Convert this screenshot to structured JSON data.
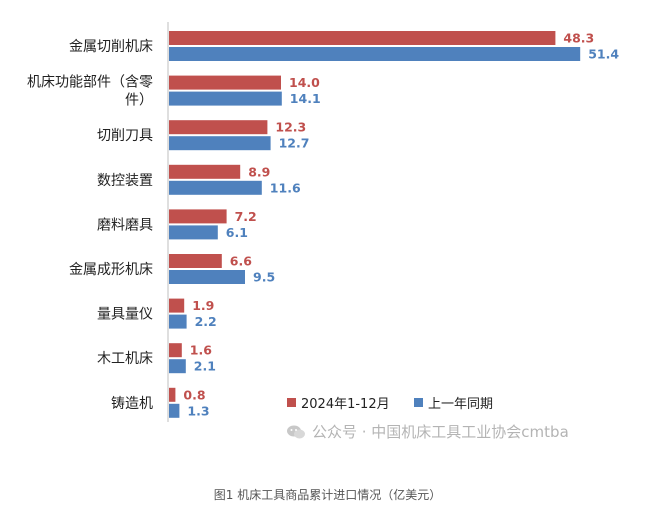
{
  "chart_data": {
    "type": "bar",
    "orientation": "horizontal",
    "categories": [
      "金属切削机床",
      "机床功能部件（含零件）",
      "切削刀具",
      "数控装置",
      "磨料磨具",
      "金属成形机床",
      "量具量仪",
      "木工机床",
      "铸造机"
    ],
    "category_lines": [
      [
        "金属切削机床"
      ],
      [
        "机床功能部件（含零",
        "件）"
      ],
      [
        "切削刀具"
      ],
      [
        "数控装置"
      ],
      [
        "磨料磨具"
      ],
      [
        "金属成形机床"
      ],
      [
        "量具量仪"
      ],
      [
        "木工机床"
      ],
      [
        "铸造机"
      ]
    ],
    "series": [
      {
        "name": "2024年1-12月",
        "color": "#c0504d",
        "values": [
          48.3,
          14.0,
          12.3,
          8.9,
          7.2,
          6.6,
          1.9,
          1.6,
          0.8
        ]
      },
      {
        "name": "上一年同期",
        "color": "#4f81bd",
        "values": [
          51.4,
          14.1,
          12.7,
          11.6,
          6.1,
          9.5,
          2.2,
          2.1,
          1.3
        ]
      }
    ],
    "value_labels": [
      [
        "48.3",
        "14.0",
        "12.3",
        "8.9",
        "7.2",
        "6.6",
        "1.9",
        "1.6",
        "0.8"
      ],
      [
        "51.4",
        "14.1",
        "12.7",
        "11.6",
        "6.1",
        "9.5",
        "2.2",
        "2.1",
        "1.3"
      ]
    ],
    "xlim": [
      0,
      55
    ],
    "grid": false,
    "legend_position": "bottom-right"
  },
  "watermark": "公众号 · 中国机床工具工业协会cmtba",
  "caption": "图1 机床工具商品累计进口情况（亿美元）",
  "colors": {
    "series_2024": "#c0504d",
    "series_prev": "#4f81bd",
    "watermark": "#b4b4b4"
  }
}
